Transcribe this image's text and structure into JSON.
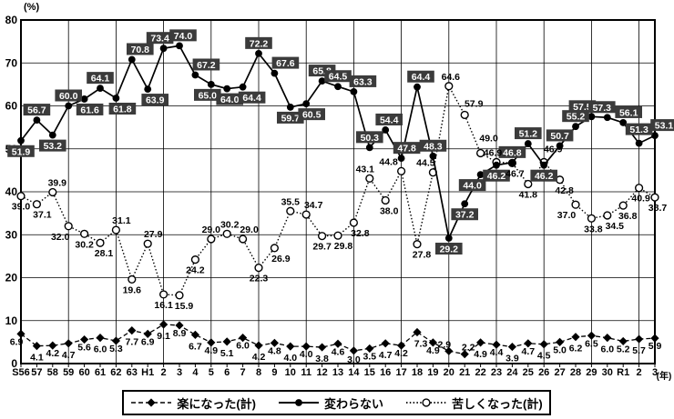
{
  "chart_data": {
    "type": "line",
    "title": "",
    "xlabel": "(年)",
    "ylabel": "(%)",
    "ylim": [
      0,
      80
    ],
    "yticks": [
      0,
      10,
      20,
      30,
      40,
      50,
      60,
      70,
      80
    ],
    "grid": {
      "horizontal": true,
      "vertical_every_n_categories": 3
    },
    "legend_position": "bottom",
    "categories": [
      "S56",
      "57",
      "58",
      "59",
      "60",
      "61",
      "62",
      "63",
      "H1",
      "2",
      "3",
      "4",
      "5",
      "6",
      "7",
      "8",
      "9",
      "10",
      "11",
      "12",
      "13",
      "14",
      "15",
      "16",
      "17",
      "18",
      "19",
      "20",
      "21",
      "22",
      "23",
      "24",
      "25",
      "26",
      "27",
      "28",
      "29",
      "30",
      "R1",
      "2",
      "3"
    ],
    "series": [
      {
        "name": "楽になった(計)",
        "marker": "filled-diamond",
        "line_style": "dashed",
        "label_style": "plain",
        "values": [
          6.9,
          4.1,
          4.2,
          4.7,
          5.6,
          6.0,
          5.3,
          7.7,
          6.9,
          9.1,
          8.9,
          6.7,
          4.9,
          5.1,
          6.0,
          4.2,
          4.8,
          4.0,
          4.0,
          3.8,
          4.6,
          3.0,
          3.5,
          4.7,
          4.2,
          7.3,
          4.9,
          2.9,
          2.2,
          4.9,
          4.4,
          3.9,
          4.7,
          4.5,
          5.0,
          6.2,
          6.5,
          6.0,
          5.2,
          5.7,
          5.9
        ]
      },
      {
        "name": "変わらない",
        "marker": "filled-circle",
        "line_style": "solid",
        "label_style": "boxed",
        "values": [
          51.9,
          56.7,
          53.2,
          60.0,
          61.6,
          64.1,
          61.8,
          70.8,
          63.9,
          73.4,
          74.0,
          67.2,
          65.0,
          64.0,
          64.4,
          72.2,
          67.6,
          59.7,
          60.5,
          65.8,
          64.5,
          63.3,
          50.3,
          54.4,
          47.8,
          64.4,
          48.3,
          29.2,
          37.2,
          44.0,
          46.2,
          46.8,
          51.2,
          46.2,
          50.7,
          55.2,
          57.5,
          57.3,
          56.1,
          51.3,
          53.1
        ]
      },
      {
        "name": "苦しくなった(計)",
        "marker": "open-circle",
        "line_style": "dotted",
        "label_style": "plain",
        "values": [
          39.0,
          37.1,
          39.9,
          32.0,
          30.2,
          28.1,
          31.1,
          19.6,
          27.9,
          16.1,
          15.9,
          24.2,
          29.0,
          30.2,
          29.0,
          22.3,
          26.9,
          35.5,
          34.7,
          29.7,
          29.8,
          32.8,
          43.1,
          38.0,
          44.8,
          27.8,
          44.5,
          64.6,
          57.9,
          49.0,
          46.9,
          46.7,
          41.8,
          46.9,
          42.8,
          37.0,
          33.8,
          34.5,
          36.8,
          40.9,
          38.7
        ]
      }
    ]
  },
  "colors": {
    "line": "#000000",
    "grid": "#000000",
    "label_box_bg": "#3b3b3b",
    "label_box_text": "#ffffff",
    "background": "#ffffff"
  }
}
